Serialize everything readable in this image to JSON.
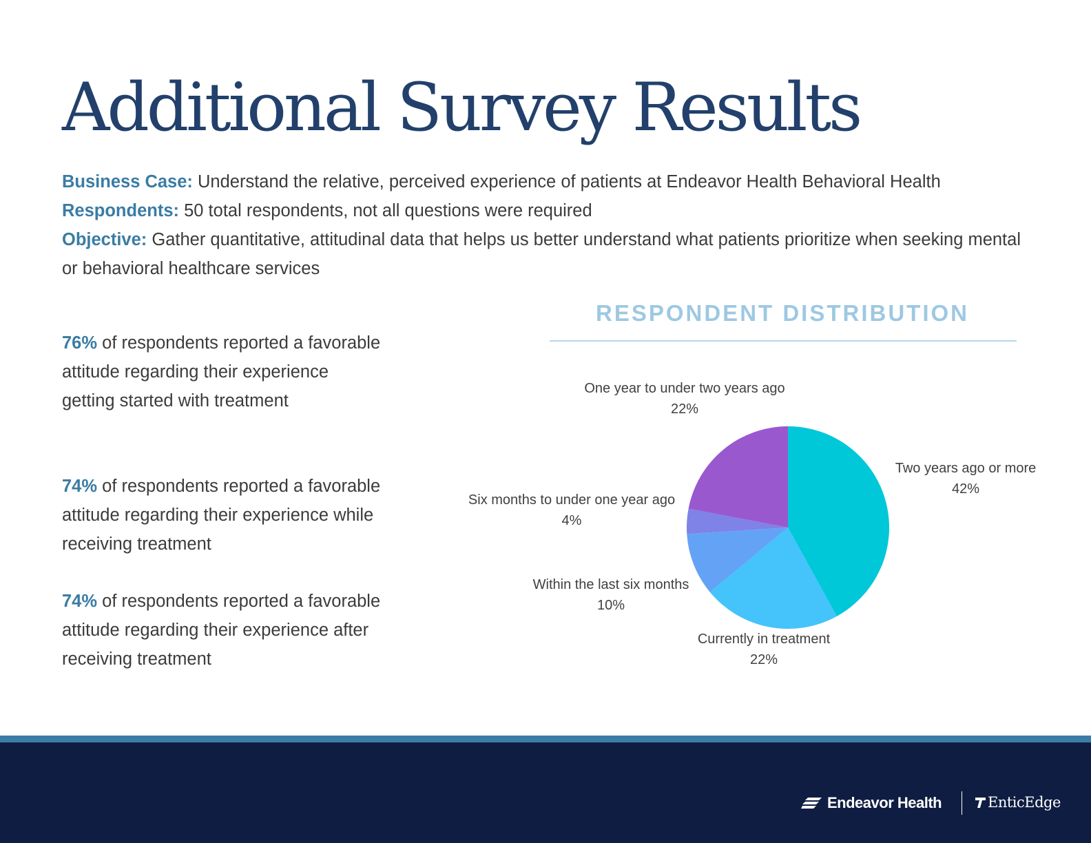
{
  "page": {
    "title": "Additional Survey Results",
    "intro": [
      {
        "label": "Business Case:",
        "text": "Understand the relative, perceived experience of patients at Endeavor Health Behavioral Health"
      },
      {
        "label": "Respondents:",
        "text": "50 total respondents, not all questions were required"
      },
      {
        "label": "Objective:",
        "text": "Gather quantitative, attitudinal data that helps us better understand what patients prioritize when seeking mental or behavioral healthcare services"
      }
    ],
    "stats": [
      {
        "pct": "76%",
        "text": "of respondents reported a favorable attitude regarding their experience getting started with treatment"
      },
      {
        "pct": "74%",
        "text": "of respondents reported a favorable attitude regarding their experience while receiving treatment"
      },
      {
        "pct": "74%",
        "text": "of respondents reported a favorable attitude regarding their experience after receiving treatment"
      }
    ]
  },
  "chart_data": {
    "type": "pie",
    "title": "RESPONDENT DISTRIBUTION",
    "slices": [
      {
        "label": "Two years ago or more",
        "value": 42,
        "value_label": "42%",
        "color": "#00c8d9"
      },
      {
        "label": "Currently in treatment",
        "value": 22,
        "value_label": "22%",
        "color": "#45c3fb"
      },
      {
        "label": "Within the last six months",
        "value": 10,
        "value_label": "10%",
        "color": "#64a2f6"
      },
      {
        "label": "Six months to under one year ago",
        "value": 4,
        "value_label": "4%",
        "color": "#7f82e7"
      },
      {
        "label": "One year to under two years ago",
        "value": 22,
        "value_label": "22%",
        "color": "#9a58cf"
      }
    ]
  },
  "footer": {
    "logo_primary": "Endeavor Health",
    "logo_primary_icon": "endeavor-stripes-icon",
    "logo_secondary": "EnticEdge",
    "logo_secondary_icon": "enticedge-mark-icon",
    "background_color": "#0f1d42",
    "stripe_color": "#3b7da7"
  }
}
